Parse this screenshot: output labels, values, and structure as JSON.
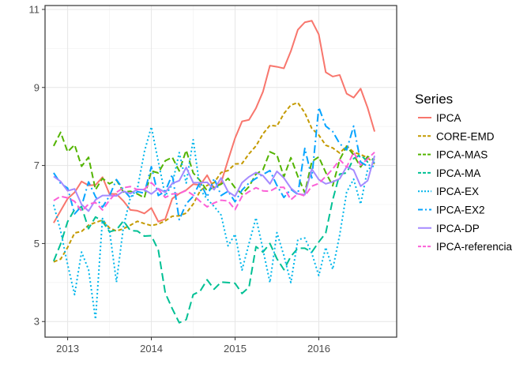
{
  "chart_data": {
    "type": "line",
    "title": "",
    "xlabel": "",
    "ylabel": "",
    "xlim": [
      2012.73,
      2016.93
    ],
    "ylim": [
      2.6,
      11.1
    ],
    "x_ticks": [
      2013,
      2014,
      2015,
      2016
    ],
    "x_tick_labels": [
      "2013",
      "2014",
      "2015",
      "2016"
    ],
    "y_ticks": [
      3,
      5,
      7,
      9,
      11
    ],
    "y_tick_labels": [
      "3",
      "5",
      "7",
      "9",
      "11"
    ],
    "grid": true,
    "legend_position": "right",
    "legend_title": "Series",
    "x_start": 2012.833,
    "x_step": 0.08333,
    "series": [
      {
        "name": "IPCA",
        "color": "#F8766D",
        "dash": "solid",
        "values": [
          5.53,
          5.84,
          6.15,
          6.31,
          6.59,
          6.49,
          6.5,
          6.7,
          6.27,
          6.27,
          6.09,
          5.86,
          5.84,
          5.77,
          5.91,
          5.56,
          5.63,
          6.15,
          6.28,
          6.37,
          6.52,
          6.5,
          6.75,
          6.41,
          6.56,
          7.14,
          7.7,
          8.13,
          8.17,
          8.47,
          8.89,
          9.56,
          9.53,
          9.49,
          9.93,
          10.48,
          10.67,
          10.71,
          10.36,
          9.39,
          9.28,
          9.32,
          8.84,
          8.74,
          8.97,
          8.48,
          7.87
        ]
      },
      {
        "name": "CORE-EMD",
        "color": "#C49A00",
        "dash": "5,3",
        "values": [
          4.53,
          4.6,
          4.9,
          5.27,
          5.31,
          5.47,
          5.54,
          5.6,
          5.4,
          5.32,
          5.38,
          5.47,
          5.57,
          5.51,
          5.46,
          5.5,
          5.58,
          5.7,
          5.71,
          5.78,
          6.01,
          6.35,
          6.49,
          6.56,
          6.82,
          6.87,
          7.04,
          7.05,
          7.3,
          7.5,
          7.81,
          8.03,
          8.01,
          8.33,
          8.55,
          8.61,
          8.35,
          7.95,
          7.78,
          7.52,
          7.45,
          7.32,
          7.5,
          7.34,
          7.28,
          7.2,
          7.04
        ]
      },
      {
        "name": "IPCA-MAS",
        "color": "#53B400",
        "dash": "8,4",
        "values": [
          7.5,
          7.85,
          7.35,
          7.53,
          6.98,
          7.21,
          6.38,
          6.67,
          6.53,
          6.63,
          6.32,
          6.34,
          6.27,
          6.17,
          6.86,
          6.81,
          7.12,
          7.21,
          6.86,
          7.39,
          6.81,
          6.61,
          6.35,
          6.45,
          6.52,
          6.67,
          6.43,
          6.27,
          6.46,
          6.78,
          6.89,
          7.35,
          7.27,
          6.71,
          7.2,
          6.72,
          6.3,
          7.1,
          7.22,
          6.82,
          6.48,
          7.15,
          7.49,
          7.27,
          6.96,
          7.23,
          7.14
        ]
      },
      {
        "name": "IPCA-MA",
        "color": "#00C094",
        "dash": "10,5",
        "values": [
          4.55,
          4.99,
          5.56,
          5.87,
          5.94,
          5.38,
          5.68,
          5.57,
          5.3,
          5.35,
          5.58,
          5.33,
          5.32,
          5.19,
          5.2,
          4.83,
          3.73,
          3.33,
          2.97,
          3.05,
          3.69,
          3.78,
          4.07,
          3.83,
          4.01,
          4.0,
          3.98,
          3.72,
          3.88,
          4.92,
          4.78,
          5.0,
          4.61,
          4.33,
          4.67,
          4.88,
          4.88,
          4.78,
          5.04,
          5.27,
          6.12,
          6.78,
          6.81,
          7.18,
          7.28,
          7.09,
          7.17
        ]
      },
      {
        "name": "IPCA-EX",
        "color": "#00B6EB",
        "dash": "2,3",
        "values": [
          5.99,
          5.32,
          4.46,
          3.69,
          4.78,
          4.33,
          3.06,
          5.64,
          5.34,
          4.01,
          5.43,
          6.18,
          6.4,
          7.35,
          7.99,
          7.1,
          6.22,
          6.52,
          7.33,
          6.55,
          7.66,
          6.38,
          6.14,
          5.95,
          5.73,
          4.94,
          5.24,
          4.32,
          5.0,
          5.66,
          4.85,
          4.0,
          5.28,
          4.69,
          4.0,
          5.1,
          5.14,
          4.75,
          4.18,
          4.9,
          4.34,
          5.22,
          6.32,
          6.65,
          6.01,
          6.9,
          7.0
        ]
      },
      {
        "name": "IPCA-EX2",
        "color": "#06A4FF",
        "dash": "10,4,2,4",
        "values": [
          6.81,
          6.54,
          6.42,
          5.76,
          5.96,
          6.58,
          6.2,
          5.93,
          6.22,
          6.64,
          6.38,
          6.17,
          6.33,
          6.29,
          6.97,
          6.23,
          6.34,
          6.77,
          5.61,
          6.02,
          6.21,
          6.58,
          6.19,
          6.67,
          6.23,
          6.34,
          6.07,
          6.37,
          6.55,
          6.67,
          6.77,
          6.87,
          6.49,
          6.18,
          6.39,
          6.26,
          7.44,
          6.68,
          8.49,
          8.01,
          7.87,
          7.56,
          7.4,
          8.01,
          7.09,
          6.98,
          7.09
        ]
      },
      {
        "name": "IPCA-DP",
        "color": "#A58AFF",
        "dash": "solid",
        "values": [
          6.72,
          6.59,
          6.35,
          6.4,
          6.0,
          5.83,
          6.12,
          6.23,
          6.23,
          6.22,
          6.34,
          6.28,
          6.39,
          6.38,
          6.27,
          6.41,
          6.31,
          6.54,
          6.61,
          6.95,
          6.56,
          6.56,
          6.57,
          6.38,
          6.68,
          6.33,
          6.21,
          6.56,
          6.71,
          6.82,
          6.74,
          6.53,
          6.85,
          6.68,
          6.42,
          6.27,
          6.25,
          6.91,
          6.64,
          6.53,
          6.58,
          6.66,
          6.97,
          6.88,
          6.47,
          6.61,
          7.25
        ]
      },
      {
        "name": "IPCA-referencia",
        "color": "#FB61D7",
        "dash": "8,4",
        "values": [
          6.1,
          6.21,
          6.17,
          6.08,
          5.83,
          6.01,
          6.05,
          5.86,
          6.11,
          6.31,
          6.43,
          6.46,
          6.38,
          6.39,
          6.56,
          6.39,
          6.18,
          6.27,
          6.28,
          6.36,
          6.24,
          6.08,
          5.94,
          6.04,
          6.11,
          6.09,
          5.87,
          6.21,
          6.33,
          6.43,
          6.35,
          6.34,
          6.44,
          6.44,
          6.12,
          6.28,
          6.22,
          6.47,
          6.54,
          6.72,
          6.91,
          7.15,
          6.96,
          7.34,
          7.01,
          7.17,
          7.34
        ]
      }
    ]
  }
}
